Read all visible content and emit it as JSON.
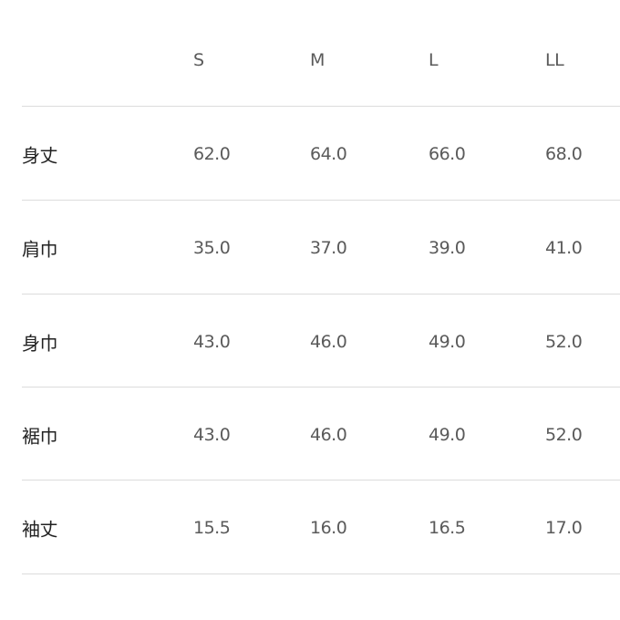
{
  "table": {
    "headers": [
      "S",
      "M",
      "L",
      "LL"
    ],
    "rows": [
      {
        "label": "身丈",
        "values": [
          "62.0",
          "64.0",
          "66.0",
          "68.0"
        ]
      },
      {
        "label": "肩巾",
        "values": [
          "35.0",
          "37.0",
          "39.0",
          "41.0"
        ]
      },
      {
        "label": "身巾",
        "values": [
          "43.0",
          "46.0",
          "49.0",
          "52.0"
        ]
      },
      {
        "label": "裾巾",
        "values": [
          "43.0",
          "46.0",
          "49.0",
          "52.0"
        ]
      },
      {
        "label": "袖丈",
        "values": [
          "15.5",
          "16.0",
          "16.5",
          "17.0"
        ]
      }
    ]
  }
}
